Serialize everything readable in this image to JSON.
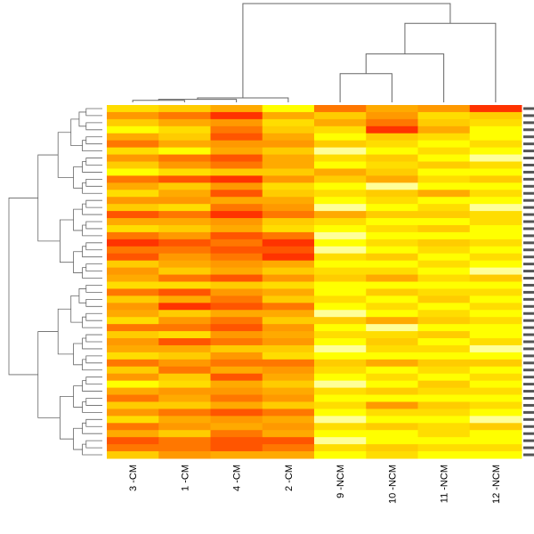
{
  "chart_data": {
    "type": "heatmap",
    "title": "",
    "xlabel": "",
    "ylabel": "",
    "columns": [
      "3 -CM",
      "1 -CM",
      "4 -CM",
      "2 -CM",
      "9 -NCM",
      "10 -NCM",
      "11 -NCM",
      "12 -NCM"
    ],
    "value_scale": [
      0,
      9
    ],
    "colormap": [
      "#ff0000",
      "#ff3300",
      "#ff5500",
      "#ff7700",
      "#ff9900",
      "#ffaa00",
      "#ffcc00",
      "#ffdd00",
      "#ffff00",
      "#ffff99"
    ],
    "column_dendrogram": {
      "merges": [
        {
          "left": 0,
          "right": 1,
          "height": 0.02
        },
        {
          "left": "m0",
          "right": 2,
          "height": 0.03
        },
        {
          "left": "m1",
          "right": 3,
          "height": 0.045
        },
        {
          "left": 4,
          "right": 5,
          "height": 0.29
        },
        {
          "left": "m3",
          "right": 6,
          "height": 0.49
        },
        {
          "left": "m4",
          "right": 7,
          "height": 0.8
        },
        {
          "left": "m2",
          "right": "m5",
          "height": 1.0
        }
      ]
    },
    "rows": [
      [
        7,
        6,
        5,
        8,
        3,
        5,
        4,
        1
      ],
      [
        4,
        3,
        1,
        5,
        6,
        4,
        7,
        6
      ],
      [
        6,
        5,
        4,
        7,
        5,
        3,
        6,
        7
      ],
      [
        8,
        7,
        3,
        6,
        7,
        1,
        5,
        8
      ],
      [
        5,
        6,
        2,
        5,
        8,
        6,
        7,
        8
      ],
      [
        3,
        5,
        4,
        4,
        6,
        7,
        8,
        7
      ],
      [
        7,
        8,
        5,
        6,
        9,
        8,
        7,
        8
      ],
      [
        4,
        3,
        2,
        5,
        7,
        6,
        8,
        9
      ],
      [
        6,
        4,
        3,
        5,
        8,
        7,
        6,
        7
      ],
      [
        8,
        7,
        6,
        6,
        5,
        6,
        8,
        8
      ],
      [
        3,
        2,
        1,
        4,
        6,
        5,
        7,
        6
      ],
      [
        5,
        6,
        4,
        7,
        8,
        9,
        8,
        8
      ],
      [
        7,
        5,
        2,
        6,
        7,
        6,
        5,
        7
      ],
      [
        4,
        4,
        5,
        5,
        8,
        7,
        8,
        8
      ],
      [
        6,
        7,
        3,
        4,
        9,
        8,
        7,
        9
      ],
      [
        2,
        3,
        1,
        3,
        5,
        6,
        6,
        7
      ],
      [
        5,
        5,
        4,
        6,
        7,
        8,
        8,
        7
      ],
      [
        7,
        6,
        5,
        7,
        8,
        7,
        6,
        8
      ],
      [
        3,
        4,
        2,
        3,
        9,
        8,
        8,
        8
      ],
      [
        1,
        2,
        3,
        1,
        8,
        7,
        6,
        7
      ],
      [
        3,
        3,
        2,
        2,
        9,
        8,
        7,
        8
      ],
      [
        2,
        4,
        3,
        1,
        7,
        6,
        8,
        7
      ],
      [
        6,
        5,
        4,
        5,
        8,
        8,
        7,
        8
      ],
      [
        4,
        6,
        5,
        6,
        7,
        7,
        8,
        9
      ],
      [
        5,
        3,
        2,
        4,
        6,
        5,
        7,
        6
      ],
      [
        7,
        7,
        6,
        7,
        8,
        8,
        8,
        8
      ],
      [
        3,
        2,
        4,
        5,
        8,
        6,
        7,
        7
      ],
      [
        6,
        5,
        3,
        6,
        7,
        8,
        6,
        8
      ],
      [
        4,
        1,
        2,
        3,
        8,
        7,
        8,
        7
      ],
      [
        5,
        6,
        5,
        5,
        9,
        8,
        7,
        8
      ],
      [
        7,
        4,
        3,
        6,
        6,
        5,
        6,
        7
      ],
      [
        3,
        3,
        2,
        4,
        8,
        9,
        8,
        8
      ],
      [
        6,
        7,
        4,
        5,
        7,
        7,
        6,
        8
      ],
      [
        4,
        2,
        3,
        4,
        8,
        6,
        8,
        7
      ],
      [
        5,
        5,
        6,
        6,
        9,
        7,
        7,
        9
      ],
      [
        7,
        6,
        4,
        7,
        8,
        8,
        8,
        8
      ],
      [
        3,
        4,
        3,
        3,
        6,
        5,
        6,
        6
      ],
      [
        6,
        3,
        5,
        4,
        7,
        8,
        7,
        8
      ],
      [
        4,
        6,
        2,
        5,
        8,
        7,
        8,
        7
      ],
      [
        8,
        7,
        5,
        6,
        9,
        8,
        6,
        8
      ],
      [
        5,
        4,
        4,
        5,
        7,
        6,
        7,
        7
      ],
      [
        3,
        5,
        3,
        4,
        8,
        8,
        8,
        8
      ],
      [
        6,
        6,
        5,
        6,
        7,
        4,
        6,
        7
      ],
      [
        4,
        3,
        2,
        3,
        8,
        7,
        7,
        8
      ],
      [
        7,
        5,
        4,
        5,
        9,
        8,
        8,
        9
      ],
      [
        3,
        4,
        5,
        4,
        7,
        6,
        7,
        6
      ],
      [
        5,
        6,
        3,
        5,
        8,
        8,
        7,
        8
      ],
      [
        2,
        3,
        2,
        2,
        9,
        8,
        8,
        8
      ],
      [
        3,
        3,
        2,
        3,
        7,
        6,
        7,
        7
      ],
      [
        6,
        4,
        5,
        5,
        8,
        7,
        8,
        8
      ]
    ]
  }
}
